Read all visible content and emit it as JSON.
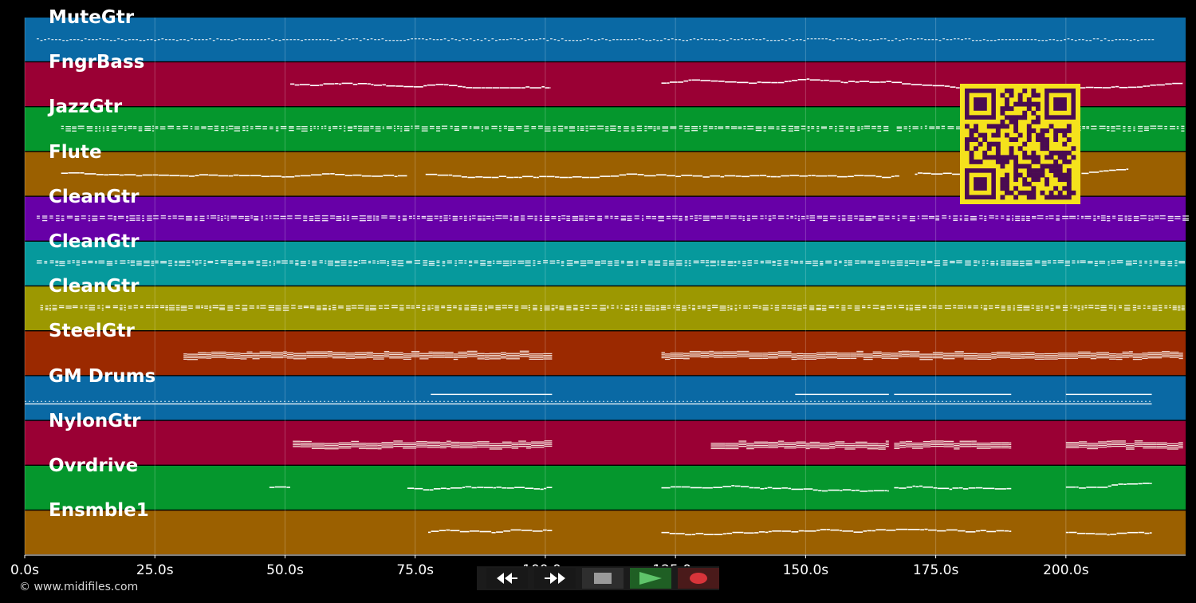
{
  "chart_data": {
    "type": "piano-roll",
    "x_unit": "s",
    "xlim": [
      0,
      223
    ],
    "x_ticks": [
      {
        "value": 0,
        "label": "0.0s"
      },
      {
        "value": 25,
        "label": "25.0s"
      },
      {
        "value": 50,
        "label": "50.0s"
      },
      {
        "value": 75,
        "label": "75.0s"
      },
      {
        "value": 100,
        "label": "100.0s"
      },
      {
        "value": 125,
        "label": "125.0s"
      },
      {
        "value": 150,
        "label": "150.0s"
      },
      {
        "value": 175,
        "label": "175.0s"
      },
      {
        "value": 200,
        "label": "200.0s"
      }
    ],
    "grid": true,
    "tracks": [
      {
        "name": "MuteGtr",
        "color": "#0a69a4",
        "pattern": "dots",
        "segments": [
          [
            2.3,
            216.5
          ]
        ]
      },
      {
        "name": "FngrBass",
        "color": "#9a0034",
        "pattern": "line",
        "segments": [
          [
            51,
            101
          ],
          [
            122.3,
            168.5
          ],
          [
            168.5,
            222.5
          ]
        ]
      },
      {
        "name": "JazzGtr",
        "color": "#05972d",
        "pattern": "chords",
        "segments": [
          [
            7,
            166
          ],
          [
            167.5,
            222.5
          ]
        ]
      },
      {
        "name": "Flute",
        "color": "#9b6000",
        "pattern": "line",
        "segments": [
          [
            7,
            73.5
          ],
          [
            77,
            168
          ],
          [
            171,
            183
          ],
          [
            203,
            212
          ]
        ]
      },
      {
        "name": "CleanGtr",
        "color": "#6700a7",
        "pattern": "chords",
        "segments": [
          [
            2.3,
            222.5
          ]
        ]
      },
      {
        "name": "CleanGtr",
        "color": "#06999c",
        "pattern": "chords",
        "segments": [
          [
            2.3,
            222.5
          ]
        ]
      },
      {
        "name": "CleanGtr",
        "color": "#9c9801",
        "pattern": "chords",
        "segments": [
          [
            3,
            222.5
          ]
        ]
      },
      {
        "name": "SteelGtr",
        "color": "#9b2900",
        "pattern": "block",
        "segments": [
          [
            30.5,
            101.3
          ],
          [
            122.3,
            222.5
          ]
        ]
      },
      {
        "name": "GM Drums",
        "color": "#0a69a4",
        "pattern": "drums",
        "segments": [
          [
            0,
            216.5
          ]
        ]
      },
      {
        "name": "NylonGtr",
        "color": "#9a0034",
        "pattern": "block",
        "segments": [
          [
            51.5,
            101.3
          ],
          [
            131.8,
            166
          ],
          [
            167,
            189.5
          ],
          [
            200,
            222.5
          ]
        ]
      },
      {
        "name": "Ovrdrive",
        "color": "#05972d",
        "pattern": "line",
        "segments": [
          [
            47,
            51
          ],
          [
            73.5,
            101.3
          ],
          [
            122.3,
            166
          ],
          [
            167,
            189.5
          ],
          [
            200,
            216.5
          ]
        ]
      },
      {
        "name": "Ensmble1",
        "color": "#9b6000",
        "pattern": "line",
        "segments": [
          [
            77.5,
            101.3
          ],
          [
            122.3,
            189.5
          ],
          [
            200,
            216.5
          ]
        ]
      }
    ]
  },
  "footer": {
    "copyright": "© www.midifiles.com"
  },
  "transport": {
    "buttons": [
      {
        "name": "rewind-button",
        "icon": "rewind-icon",
        "bg": "#181818",
        "color": "#ffffff"
      },
      {
        "name": "fast-forward-button",
        "icon": "fast-forward-icon",
        "bg": "#181818",
        "color": "#ffffff"
      },
      {
        "name": "stop-button",
        "icon": "stop-icon",
        "bg": "#2e2e2e",
        "color": "#9a9a9a"
      },
      {
        "name": "play-button",
        "icon": "play-icon",
        "bg": "#1f5f24",
        "color": "#5fc46a"
      },
      {
        "name": "record-button",
        "icon": "record-icon",
        "bg": "#4a1a1a",
        "color": "#d8343a"
      }
    ]
  },
  "qr": {
    "icon": "qr-code-icon",
    "fg": "#4a0b52",
    "bg": "#f5e21c"
  }
}
